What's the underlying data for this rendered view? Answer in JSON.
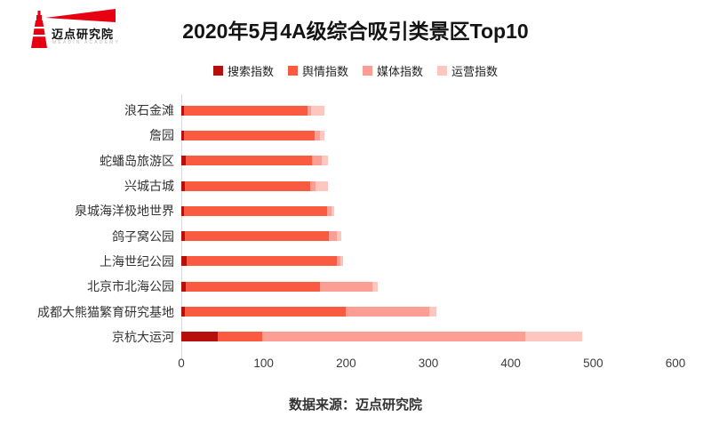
{
  "logo": {
    "brand": "迈点研究院",
    "brand_sub": "MEADIN ACADEMY",
    "accent_color": "#e60012"
  },
  "title": "2020年5月4A级综合吸引类景区Top10",
  "footer": "数据来源：迈点研究院",
  "chart_data": {
    "type": "bar",
    "orientation": "horizontal",
    "stacked": true,
    "title": "2020年5月4A级综合吸引类景区Top10",
    "xlabel": "",
    "ylabel": "",
    "xlim": [
      0,
      600
    ],
    "xticks": [
      0,
      100,
      200,
      300,
      400,
      500,
      600
    ],
    "grid": false,
    "legend_position": "top",
    "categories": [
      "浪石金滩",
      "詹园",
      "蛇蟠岛旅游区",
      "兴城古城",
      "泉城海洋极地世界",
      "鸽子窝公园",
      "上海世纪公园",
      "北京市北海公园",
      "成都大熊猫繁育研究基地",
      "京杭大运河"
    ],
    "series": [
      {
        "name": "搜索指数",
        "key": "search-index",
        "color": "#b70f0b",
        "values": [
          3,
          3,
          5,
          4,
          3,
          4,
          7,
          5,
          4,
          44
        ]
      },
      {
        "name": "舆情指数",
        "key": "sentiment-index",
        "color": "#fa5a40",
        "values": [
          150,
          159,
          154,
          152,
          174,
          175,
          182,
          163,
          196,
          54
        ]
      },
      {
        "name": "媒体指数",
        "key": "media-index",
        "color": "#fc9e93",
        "values": [
          5,
          6,
          12,
          7,
          5,
          10,
          4,
          64,
          101,
          320
        ]
      },
      {
        "name": "运营指数",
        "key": "operations-index",
        "color": "#fdc6bf",
        "values": [
          16,
          6,
          7,
          15,
          4,
          5,
          3,
          6,
          9,
          69
        ]
      }
    ]
  }
}
